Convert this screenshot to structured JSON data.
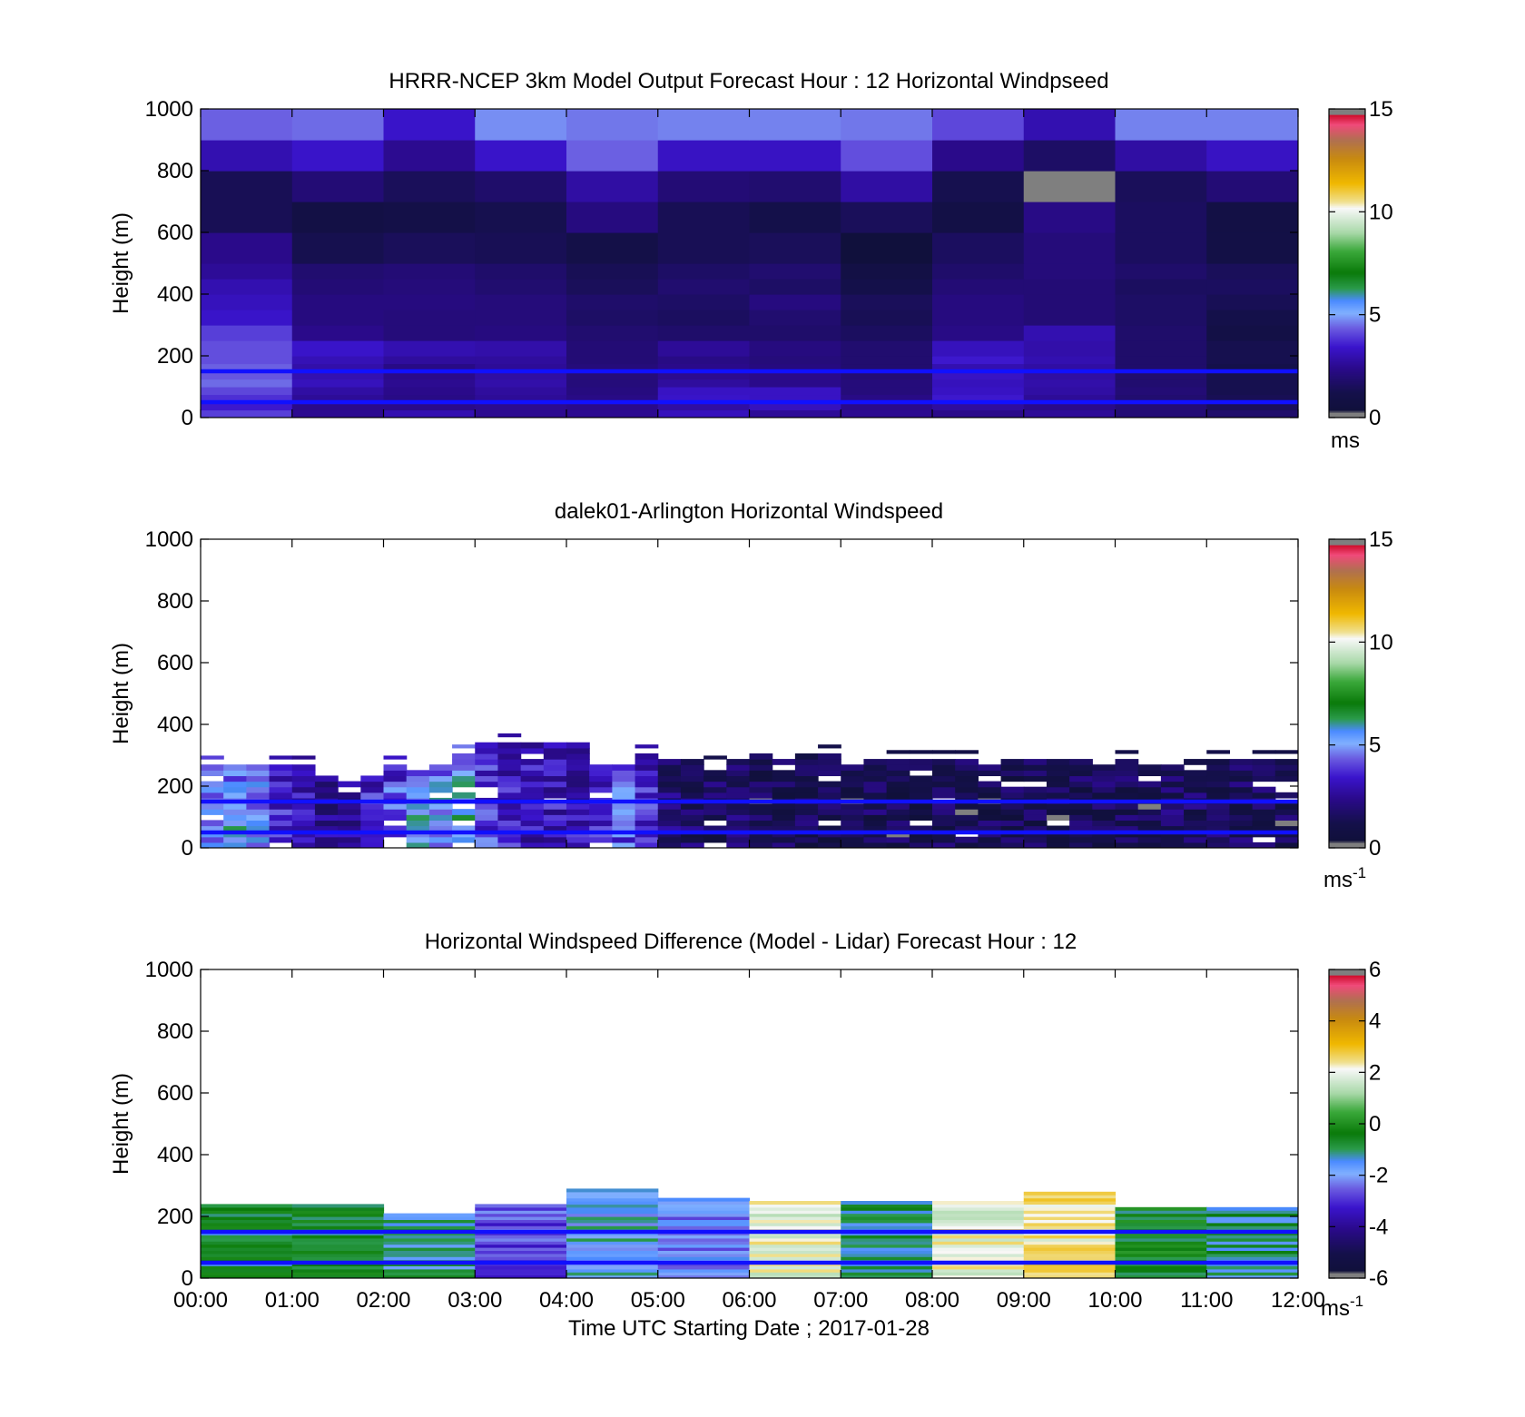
{
  "figure": {
    "xlabel": "Time UTC  Starting Date ; 2017-01-28",
    "x_tick_labels": [
      "00:00",
      "01:00",
      "02:00",
      "03:00",
      "04:00",
      "05:00",
      "06:00",
      "07:00",
      "08:00",
      "09:00",
      "10:00",
      "11:00",
      "12:00"
    ]
  },
  "colors": {
    "reference_line": "#1010ff",
    "axes": "#000000"
  },
  "colormap_stops": [
    [
      0.0,
      "#7f7f7f"
    ],
    [
      0.02,
      "#7f7f7f"
    ],
    [
      0.021,
      "#10103a"
    ],
    [
      0.08,
      "#14104a"
    ],
    [
      0.16,
      "#2a0a8a"
    ],
    [
      0.23,
      "#3a14cc"
    ],
    [
      0.29,
      "#6a5ae0"
    ],
    [
      0.34,
      "#80b0ff"
    ],
    [
      0.38,
      "#4a8aff"
    ],
    [
      0.42,
      "#2a9a4a"
    ],
    [
      0.47,
      "#0a7a0a"
    ],
    [
      0.54,
      "#3aa83a"
    ],
    [
      0.6,
      "#a8d8a8"
    ],
    [
      0.68,
      "#f8f8f8"
    ],
    [
      0.7,
      "#f0e090"
    ],
    [
      0.76,
      "#f0b800"
    ],
    [
      0.84,
      "#c88a10"
    ],
    [
      0.9,
      "#b07050"
    ],
    [
      0.95,
      "#f04a7a"
    ],
    [
      0.98,
      "#d01030"
    ],
    [
      0.981,
      "#7f7f7f"
    ],
    [
      1.0,
      "#7f7f7f"
    ]
  ],
  "chart_data": [
    {
      "type": "heatmap",
      "title": "HRRR-NCEP 3km Model Output   Forecast Hour : 12 Horizontal Windpseed",
      "xlabel": "",
      "ylabel": "Height (m)",
      "xlim": [
        0,
        12
      ],
      "ylim": [
        0,
        1000
      ],
      "y_ticks": [
        0,
        200,
        400,
        600,
        800,
        1000
      ],
      "colorbar": {
        "range": [
          0,
          15
        ],
        "ticks": [
          0,
          5,
          10,
          15
        ],
        "unit": "ms",
        "unit_superscript": ""
      },
      "reference_lines": [
        50,
        150
      ],
      "x_bins": [
        0,
        1,
        2,
        3,
        4,
        5,
        6,
        7,
        8,
        9,
        10,
        11,
        12
      ],
      "y_bins": [
        0,
        25,
        50,
        75,
        100,
        125,
        150,
        175,
        200,
        250,
        300,
        350,
        400,
        450,
        500,
        600,
        700,
        800,
        900,
        1000
      ],
      "values": [
        [
          4.0,
          2.5,
          3.0,
          2.5,
          2.5,
          3.2,
          2.6,
          2.5,
          2.4,
          2.6,
          2.0,
          1.8
        ],
        [
          3.5,
          2.4,
          2.4,
          2.5,
          2.4,
          2.8,
          3.2,
          2.4,
          2.7,
          2.4,
          2.0,
          1.5
        ],
        [
          3.8,
          2.6,
          2.3,
          2.6,
          2.3,
          3.4,
          3.3,
          2.3,
          3.5,
          2.6,
          1.9,
          1.4
        ],
        [
          4.1,
          2.8,
          2.4,
          2.7,
          2.2,
          3.3,
          3.3,
          2.1,
          3.3,
          2.8,
          2.0,
          1.3
        ],
        [
          4.5,
          3.2,
          2.5,
          2.9,
          2.1,
          2.7,
          2.4,
          2.1,
          3.2,
          2.9,
          1.9,
          1.3
        ],
        [
          4.3,
          3.0,
          2.4,
          2.8,
          2.1,
          2.5,
          2.4,
          2.0,
          3.3,
          2.8,
          1.9,
          1.3
        ],
        [
          4.4,
          2.9,
          2.3,
          2.6,
          2.1,
          2.4,
          2.2,
          1.9,
          3.0,
          2.8,
          1.8,
          1.2
        ],
        [
          4.2,
          3.1,
          2.7,
          2.7,
          2.0,
          2.3,
          2.1,
          1.9,
          3.5,
          3.0,
          1.8,
          1.3
        ],
        [
          4.2,
          3.4,
          3.0,
          2.9,
          2.0,
          2.6,
          2.2,
          1.9,
          3.2,
          2.9,
          1.8,
          1.3
        ],
        [
          4.0,
          2.4,
          2.1,
          2.2,
          1.9,
          1.8,
          1.8,
          1.6,
          2.3,
          3.0,
          1.8,
          1.0
        ],
        [
          3.4,
          2.2,
          2.1,
          2.1,
          1.7,
          1.6,
          1.9,
          1.4,
          2.2,
          2.0,
          1.7,
          1.2
        ],
        [
          3.2,
          2.2,
          2.2,
          2.1,
          1.8,
          1.7,
          2.2,
          1.5,
          2.2,
          2.0,
          1.7,
          1.4
        ],
        [
          3.0,
          2.0,
          2.1,
          1.9,
          1.5,
          1.9,
          1.7,
          1.2,
          2.0,
          2.0,
          1.6,
          1.6
        ],
        [
          2.6,
          1.9,
          2.0,
          1.8,
          1.4,
          1.7,
          1.9,
          0.9,
          1.8,
          2.1,
          1.8,
          1.5
        ],
        [
          2.4,
          1.3,
          1.5,
          1.4,
          1.1,
          1.4,
          1.5,
          0.4,
          1.6,
          2.1,
          1.6,
          1.0
        ],
        [
          1.4,
          0.9,
          1.1,
          1.3,
          2.2,
          1.4,
          1.2,
          1.5,
          1.0,
          2.3,
          1.6,
          0.9
        ],
        [
          1.4,
          2.0,
          1.5,
          1.8,
          2.8,
          2.0,
          1.9,
          2.8,
          1.3,
          0.2,
          1.5,
          2.0
        ],
        [
          3.0,
          3.4,
          2.5,
          3.4,
          4.4,
          3.3,
          3.3,
          4.2,
          2.4,
          1.7,
          2.8,
          3.3
        ],
        [
          4.4,
          4.5,
          3.4,
          4.8,
          4.6,
          4.7,
          4.7,
          4.6,
          4.1,
          3.0,
          4.7,
          4.7
        ]
      ]
    },
    {
      "type": "heatmap",
      "title": "dalek01-Arlington  Horizontal Windspeed",
      "xlabel": "",
      "ylabel": "Height (m)",
      "xlim": [
        0,
        12
      ],
      "ylim": [
        0,
        1000
      ],
      "y_ticks": [
        0,
        200,
        400,
        600,
        800,
        1000
      ],
      "colorbar": {
        "range": [
          0,
          15
        ],
        "ticks": [
          0,
          5,
          10,
          15
        ],
        "unit": "ms",
        "unit_superscript": "-1"
      },
      "reference_lines": [
        50,
        150
      ],
      "time_resolution_min": 15,
      "gate_height_m": 18,
      "gates_by_interval": [
        15,
        15,
        15,
        15,
        15,
        13,
        12,
        13,
        15,
        15,
        15,
        17,
        19,
        19,
        19,
        19,
        19,
        15,
        15,
        17,
        16,
        16,
        15,
        16,
        17,
        16,
        17,
        17,
        16,
        16,
        16,
        16,
        16,
        16,
        15,
        16,
        16,
        16,
        16,
        15,
        16,
        15,
        15,
        16,
        16,
        16,
        16,
        16
      ],
      "base_speeds": [
        5.0,
        5.5,
        5.0,
        3.6,
        3.0,
        2.6,
        2.8,
        3.5,
        4.2,
        5.2,
        5.2,
        5.8,
        3.8,
        3.4,
        3.2,
        3.2,
        3.1,
        3.6,
        4.2,
        3.6,
        1.8,
        1.6,
        1.5,
        1.6,
        1.2,
        1.5,
        1.3,
        1.4,
        1.3,
        1.4,
        1.2,
        1.3,
        1.3,
        1.2,
        1.2,
        1.3,
        1.2,
        1.2,
        1.3,
        1.3,
        1.4,
        1.3,
        1.6,
        1.6,
        1.4,
        1.4,
        1.3,
        1.2
      ],
      "ambient_speed": 2.0
    },
    {
      "type": "heatmap",
      "title": "Horizontal Windspeed Difference (Model - Lidar) Forecast Hour : 12",
      "xlabel": "Time UTC  Starting Date ; 2017-01-28",
      "ylabel": "Height (m)",
      "xlim": [
        0,
        12
      ],
      "ylim": [
        0,
        1000
      ],
      "y_ticks": [
        0,
        200,
        400,
        600,
        800,
        1000
      ],
      "colorbar": {
        "range": [
          -6,
          6
        ],
        "ticks": [
          -6,
          -4,
          -2,
          0,
          2,
          4,
          6
        ],
        "unit": "ms",
        "unit_superscript": "-1"
      },
      "reference_lines": [
        50,
        150
      ],
      "column_tops_m": [
        240,
        240,
        210,
        240,
        290,
        260,
        250,
        250,
        250,
        280,
        230,
        230
      ],
      "column_means": [
        -0.7,
        -0.7,
        -1.1,
        -2.8,
        -1.6,
        -2.1,
        1.9,
        -1.0,
        2.1,
        2.4,
        -0.5,
        -1.0
      ]
    }
  ]
}
